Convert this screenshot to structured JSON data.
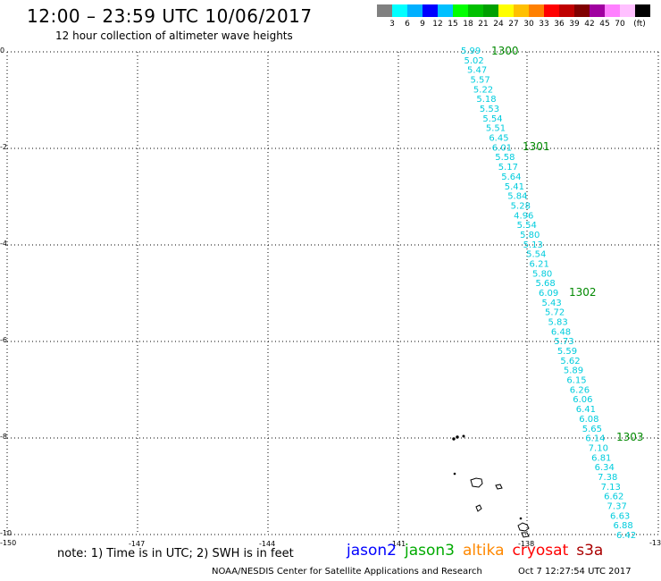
{
  "header": {
    "title": "12:00 – 23:59 UTC 10/06/2017",
    "subtitle": "12 hour collection of altimeter wave heights"
  },
  "colorbar": {
    "colors": [
      "#808080",
      "#00ffff",
      "#00b0ff",
      "#0000ff",
      "#00c0ff",
      "#00ff00",
      "#00c000",
      "#00a000",
      "#ffff00",
      "#ffc000",
      "#ff8000",
      "#ff0000",
      "#c00000",
      "#800000",
      "#a000a0",
      "#ff80ff",
      "#ffc0ff",
      "#000000"
    ],
    "labels": [
      "3",
      "6",
      "9",
      "12",
      "15",
      "18",
      "21",
      "24",
      "27",
      "30",
      "33",
      "36",
      "39",
      "42",
      "45",
      "70",
      "(ft)"
    ]
  },
  "map": {
    "x_ticks": [
      "-150",
      "-147",
      "-144",
      "-141",
      "-138",
      "-13"
    ],
    "y_ticks": [
      "0",
      "-2",
      "-4",
      "-6",
      "-8",
      "-10"
    ],
    "track_color": "#00ccdd",
    "time_color": "#008800",
    "time_labels": [
      "1300",
      "1301",
      "1302",
      "1303"
    ],
    "wave_heights": [
      "5.99",
      "5.02",
      "5.47",
      "5.57",
      "5.22",
      "5.18",
      "5.53",
      "5.54",
      "5.51",
      "6.45",
      "6.01",
      "5.58",
      "5.17",
      "5.64",
      "5.41",
      "5.84",
      "5.28",
      "4.96",
      "5.54",
      "5.80",
      "5.13",
      "5.54",
      "6.21",
      "5.80",
      "5.68",
      "6.09",
      "5.43",
      "5.72",
      "5.83",
      "6.48",
      "5.73",
      "5.59",
      "5.62",
      "5.89",
      "6.15",
      "6.26",
      "6.06",
      "6.41",
      "6.08",
      "5.65",
      "6.14",
      "7.10",
      "6.81",
      "6.34",
      "7.38",
      "7.13",
      "6.62",
      "7.37",
      "6.63",
      "6.88",
      "6.42"
    ]
  },
  "footer": {
    "note": "note: 1) Time is in UTC; 2) SWH is in feet",
    "satellites": [
      {
        "name": "jason2",
        "color": "#0000ff"
      },
      {
        "name": "jason3",
        "color": "#00aa00"
      },
      {
        "name": "altika",
        "color": "#ff8800"
      },
      {
        "name": "cryosat",
        "color": "#ff0000"
      },
      {
        "name": "s3a",
        "color": "#aa0000"
      }
    ],
    "credit": "NOAA/NESDIS Center for Satellite Applications and Research",
    "timestamp": "Oct  7 12:27:54 UTC 2017"
  }
}
